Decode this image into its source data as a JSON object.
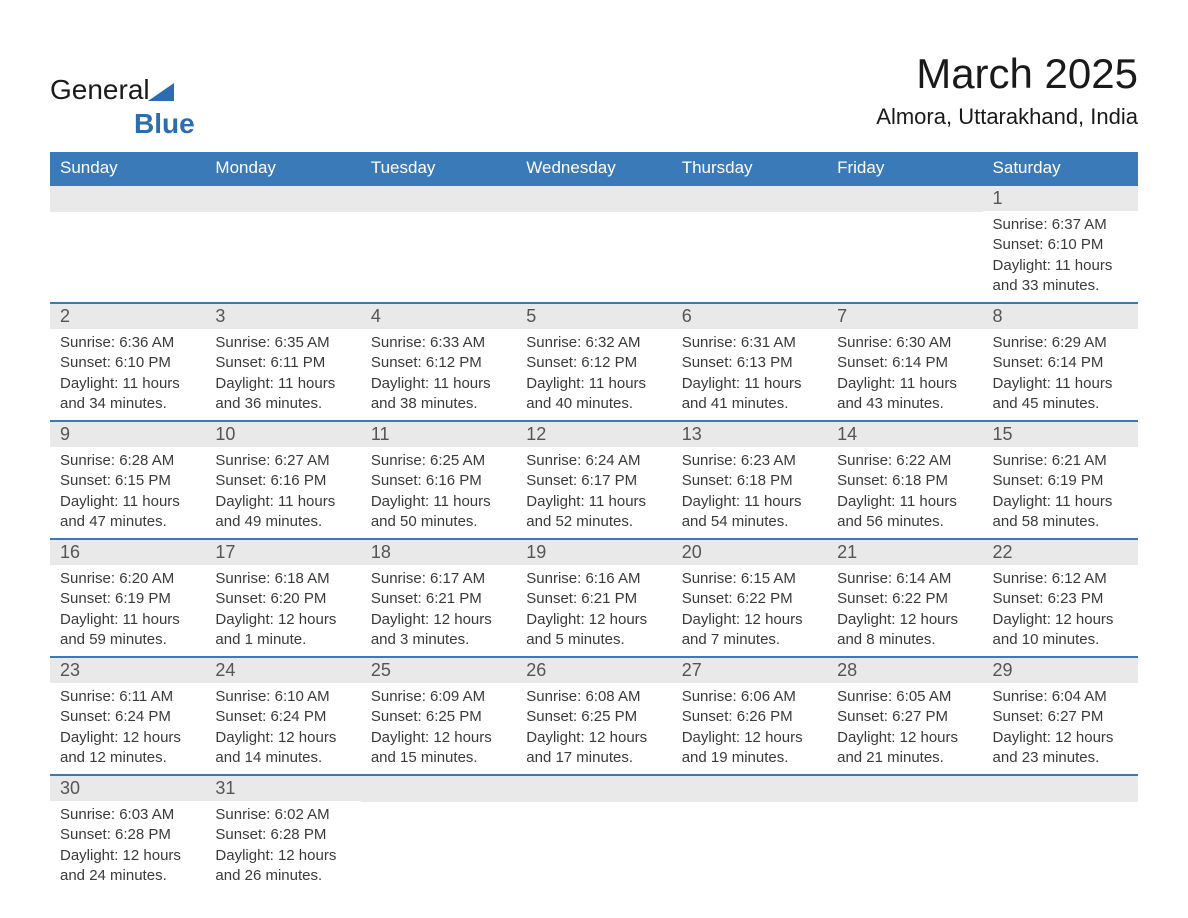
{
  "logo": {
    "word1": "General",
    "word2": "Blue",
    "tri_color": "#2c6cb0"
  },
  "title": "March 2025",
  "subtitle": "Almora, Uttarakhand, India",
  "colors": {
    "header_bg": "#3b7ab8",
    "header_fg": "#ffffff",
    "daynum_bg": "#e9e9e9",
    "row_divider": "#3b7ab8",
    "text": "#3a3a3a",
    "page_bg": "#ffffff"
  },
  "typography": {
    "title_fontsize": 42,
    "subtitle_fontsize": 22,
    "weekday_fontsize": 17,
    "daynum_fontsize": 18,
    "body_fontsize": 15,
    "font_family": "Arial"
  },
  "calendar": {
    "type": "table",
    "columns": [
      "Sunday",
      "Monday",
      "Tuesday",
      "Wednesday",
      "Thursday",
      "Friday",
      "Saturday"
    ],
    "weeks": [
      [
        null,
        null,
        null,
        null,
        null,
        null,
        {
          "day": "1",
          "sunrise": "Sunrise: 6:37 AM",
          "sunset": "Sunset: 6:10 PM",
          "daylight": "Daylight: 11 hours and 33 minutes."
        }
      ],
      [
        {
          "day": "2",
          "sunrise": "Sunrise: 6:36 AM",
          "sunset": "Sunset: 6:10 PM",
          "daylight": "Daylight: 11 hours and 34 minutes."
        },
        {
          "day": "3",
          "sunrise": "Sunrise: 6:35 AM",
          "sunset": "Sunset: 6:11 PM",
          "daylight": "Daylight: 11 hours and 36 minutes."
        },
        {
          "day": "4",
          "sunrise": "Sunrise: 6:33 AM",
          "sunset": "Sunset: 6:12 PM",
          "daylight": "Daylight: 11 hours and 38 minutes."
        },
        {
          "day": "5",
          "sunrise": "Sunrise: 6:32 AM",
          "sunset": "Sunset: 6:12 PM",
          "daylight": "Daylight: 11 hours and 40 minutes."
        },
        {
          "day": "6",
          "sunrise": "Sunrise: 6:31 AM",
          "sunset": "Sunset: 6:13 PM",
          "daylight": "Daylight: 11 hours and 41 minutes."
        },
        {
          "day": "7",
          "sunrise": "Sunrise: 6:30 AM",
          "sunset": "Sunset: 6:14 PM",
          "daylight": "Daylight: 11 hours and 43 minutes."
        },
        {
          "day": "8",
          "sunrise": "Sunrise: 6:29 AM",
          "sunset": "Sunset: 6:14 PM",
          "daylight": "Daylight: 11 hours and 45 minutes."
        }
      ],
      [
        {
          "day": "9",
          "sunrise": "Sunrise: 6:28 AM",
          "sunset": "Sunset: 6:15 PM",
          "daylight": "Daylight: 11 hours and 47 minutes."
        },
        {
          "day": "10",
          "sunrise": "Sunrise: 6:27 AM",
          "sunset": "Sunset: 6:16 PM",
          "daylight": "Daylight: 11 hours and 49 minutes."
        },
        {
          "day": "11",
          "sunrise": "Sunrise: 6:25 AM",
          "sunset": "Sunset: 6:16 PM",
          "daylight": "Daylight: 11 hours and 50 minutes."
        },
        {
          "day": "12",
          "sunrise": "Sunrise: 6:24 AM",
          "sunset": "Sunset: 6:17 PM",
          "daylight": "Daylight: 11 hours and 52 minutes."
        },
        {
          "day": "13",
          "sunrise": "Sunrise: 6:23 AM",
          "sunset": "Sunset: 6:18 PM",
          "daylight": "Daylight: 11 hours and 54 minutes."
        },
        {
          "day": "14",
          "sunrise": "Sunrise: 6:22 AM",
          "sunset": "Sunset: 6:18 PM",
          "daylight": "Daylight: 11 hours and 56 minutes."
        },
        {
          "day": "15",
          "sunrise": "Sunrise: 6:21 AM",
          "sunset": "Sunset: 6:19 PM",
          "daylight": "Daylight: 11 hours and 58 minutes."
        }
      ],
      [
        {
          "day": "16",
          "sunrise": "Sunrise: 6:20 AM",
          "sunset": "Sunset: 6:19 PM",
          "daylight": "Daylight: 11 hours and 59 minutes."
        },
        {
          "day": "17",
          "sunrise": "Sunrise: 6:18 AM",
          "sunset": "Sunset: 6:20 PM",
          "daylight": "Daylight: 12 hours and 1 minute."
        },
        {
          "day": "18",
          "sunrise": "Sunrise: 6:17 AM",
          "sunset": "Sunset: 6:21 PM",
          "daylight": "Daylight: 12 hours and 3 minutes."
        },
        {
          "day": "19",
          "sunrise": "Sunrise: 6:16 AM",
          "sunset": "Sunset: 6:21 PM",
          "daylight": "Daylight: 12 hours and 5 minutes."
        },
        {
          "day": "20",
          "sunrise": "Sunrise: 6:15 AM",
          "sunset": "Sunset: 6:22 PM",
          "daylight": "Daylight: 12 hours and 7 minutes."
        },
        {
          "day": "21",
          "sunrise": "Sunrise: 6:14 AM",
          "sunset": "Sunset: 6:22 PM",
          "daylight": "Daylight: 12 hours and 8 minutes."
        },
        {
          "day": "22",
          "sunrise": "Sunrise: 6:12 AM",
          "sunset": "Sunset: 6:23 PM",
          "daylight": "Daylight: 12 hours and 10 minutes."
        }
      ],
      [
        {
          "day": "23",
          "sunrise": "Sunrise: 6:11 AM",
          "sunset": "Sunset: 6:24 PM",
          "daylight": "Daylight: 12 hours and 12 minutes."
        },
        {
          "day": "24",
          "sunrise": "Sunrise: 6:10 AM",
          "sunset": "Sunset: 6:24 PM",
          "daylight": "Daylight: 12 hours and 14 minutes."
        },
        {
          "day": "25",
          "sunrise": "Sunrise: 6:09 AM",
          "sunset": "Sunset: 6:25 PM",
          "daylight": "Daylight: 12 hours and 15 minutes."
        },
        {
          "day": "26",
          "sunrise": "Sunrise: 6:08 AM",
          "sunset": "Sunset: 6:25 PM",
          "daylight": "Daylight: 12 hours and 17 minutes."
        },
        {
          "day": "27",
          "sunrise": "Sunrise: 6:06 AM",
          "sunset": "Sunset: 6:26 PM",
          "daylight": "Daylight: 12 hours and 19 minutes."
        },
        {
          "day": "28",
          "sunrise": "Sunrise: 6:05 AM",
          "sunset": "Sunset: 6:27 PM",
          "daylight": "Daylight: 12 hours and 21 minutes."
        },
        {
          "day": "29",
          "sunrise": "Sunrise: 6:04 AM",
          "sunset": "Sunset: 6:27 PM",
          "daylight": "Daylight: 12 hours and 23 minutes."
        }
      ],
      [
        {
          "day": "30",
          "sunrise": "Sunrise: 6:03 AM",
          "sunset": "Sunset: 6:28 PM",
          "daylight": "Daylight: 12 hours and 24 minutes."
        },
        {
          "day": "31",
          "sunrise": "Sunrise: 6:02 AM",
          "sunset": "Sunset: 6:28 PM",
          "daylight": "Daylight: 12 hours and 26 minutes."
        },
        null,
        null,
        null,
        null,
        null
      ]
    ]
  }
}
